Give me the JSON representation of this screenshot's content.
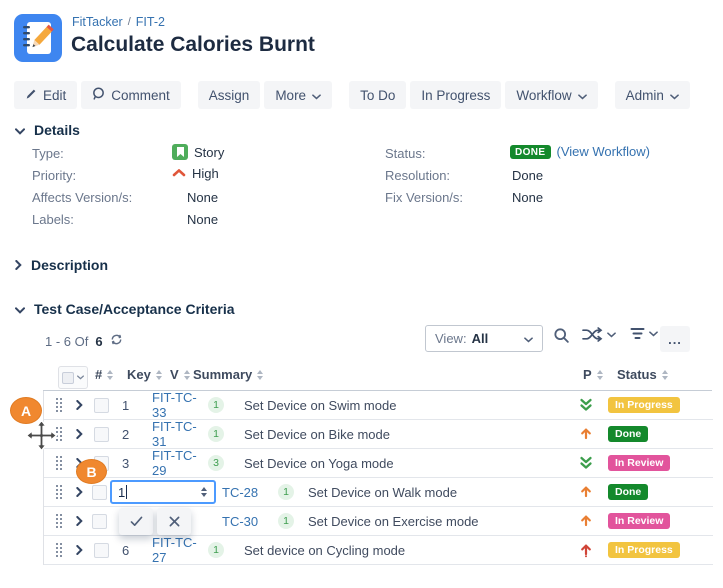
{
  "header": {
    "project": "FitTacker",
    "separator": "/",
    "issue_key": "FIT-2",
    "title": "Calculate Calories Burnt"
  },
  "toolbar": {
    "edit": "Edit",
    "comment": "Comment",
    "assign": "Assign",
    "more": "More",
    "to_do": "To Do",
    "in_progress": "In Progress",
    "workflow": "Workflow",
    "admin": "Admin"
  },
  "details": {
    "title": "Details",
    "left": [
      {
        "label": "Type:",
        "value": "Story"
      },
      {
        "label": "Priority:",
        "value": "High"
      },
      {
        "label": "Affects Version/s:",
        "value": "None"
      },
      {
        "label": "Labels:",
        "value": "None"
      }
    ],
    "right": [
      {
        "label": "Status:",
        "badge": "DONE",
        "link": "(View Workflow)"
      },
      {
        "label": "Resolution:",
        "value": "Done"
      },
      {
        "label": "Fix Version/s:",
        "value": "None"
      }
    ]
  },
  "description": {
    "title": "Description"
  },
  "test_cases": {
    "title": "Test Case/Acceptance Criteria",
    "pagination": {
      "range": "1 - 6 Of",
      "total": "6"
    },
    "view": {
      "label": "View:",
      "value": "All"
    },
    "more_button": "...",
    "columns": {
      "num": "#",
      "key": "Key",
      "version": "V",
      "summary": "Summary",
      "priority": "P",
      "status": "Status"
    },
    "editing_row": 3,
    "edit_input_value": "1",
    "rows": [
      {
        "num": "1",
        "key": "FIT-TC-33",
        "version": "1",
        "summary": "Set Device on Swim mode",
        "priority": "lowest",
        "status": "In Progress"
      },
      {
        "num": "2",
        "key": "FIT-TC-31",
        "version": "1",
        "summary": "Set Device on Bike mode",
        "priority": "high",
        "status": "Done"
      },
      {
        "num": "3",
        "key": "FIT-TC-29",
        "version": "3",
        "summary": "Set Device on Yoga mode",
        "priority": "lowest",
        "status": "In Review"
      },
      {
        "num": "",
        "key": "TC-28",
        "version": "1",
        "summary": "Set Device on Walk mode",
        "priority": "high",
        "status": "Done"
      },
      {
        "num": "",
        "key": "TC-30",
        "version": "1",
        "summary": "Set Device on Exercise mode",
        "priority": "high",
        "status": "In Review"
      },
      {
        "num": "6",
        "key": "FIT-TC-27",
        "version": "1",
        "summary": "Set device on Cycling mode",
        "priority": "highest",
        "status": "In Progress"
      }
    ],
    "status_colors": {
      "In Progress": "#F2C440",
      "Done": "#14892C",
      "In Review": "#E2549C"
    },
    "priority_colors": {
      "lowest": "#3C9E4C",
      "high": "#E97F33",
      "highest": "#D04437"
    }
  },
  "annotations": [
    {
      "label": "A"
    },
    {
      "label": "B"
    }
  ]
}
